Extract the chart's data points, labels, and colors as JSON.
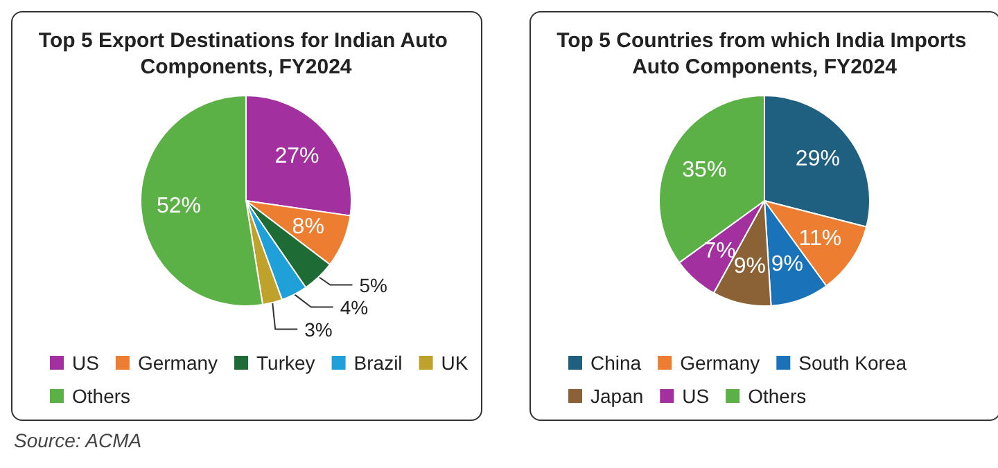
{
  "chart_data": [
    {
      "type": "pie",
      "title": "Top 5 Export Destinations for Indian Auto Components, FY2024",
      "categories": [
        "US",
        "Germany",
        "Turkey",
        "Brazil",
        "UK",
        "Others"
      ],
      "values": [
        27,
        8,
        5,
        4,
        3,
        52
      ],
      "value_labels": [
        "27%",
        "8%",
        "5%",
        "4%",
        "3%",
        "52%"
      ],
      "colors": [
        "#a3309f",
        "#ed7d31",
        "#1e6b35",
        "#1fa0d8",
        "#bfa22c",
        "#5cb146"
      ],
      "legend": "bottom",
      "annotations": [
        "Source: ACMA"
      ]
    },
    {
      "type": "pie",
      "title": "Top 5 Countries from which India Imports Auto Components, FY2024",
      "categories": [
        "China",
        "Germany",
        "South Korea",
        "Japan",
        "US",
        "Others"
      ],
      "values": [
        29,
        11,
        9,
        9,
        7,
        35
      ],
      "value_labels": [
        "29%",
        "11%",
        "9%",
        "9%",
        "7%",
        "35%"
      ],
      "colors": [
        "#1f5f7f",
        "#ed7d31",
        "#1a73b8",
        "#8b6235",
        "#a3309f",
        "#5cb146"
      ],
      "legend": "bottom"
    }
  ]
}
